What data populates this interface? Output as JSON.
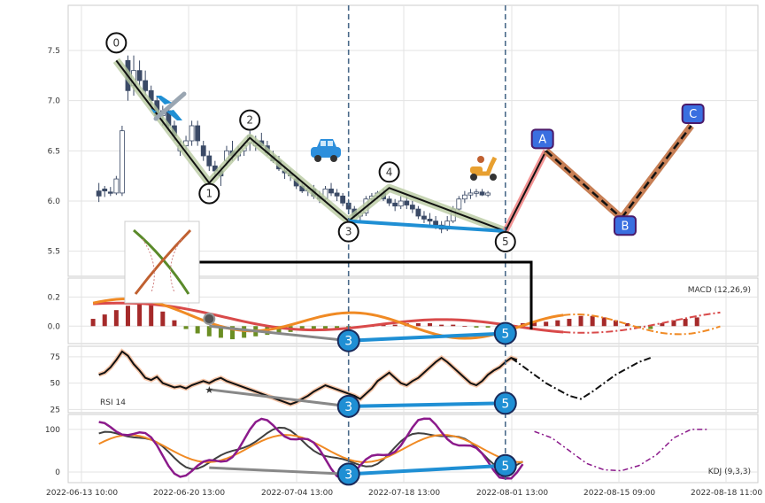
{
  "chart_data": {
    "type": "line",
    "x_labels": [
      "2022-06-13 10:00",
      "2022-06-20 13:00",
      "2022-07-04 13:00",
      "2022-07-18 13:00",
      "2022-08-01 13:00",
      "2022-08-15 09:00",
      "2022-08-18 11:00"
    ],
    "price": {
      "y_ticks": [
        "5.5",
        "6.0",
        "6.5",
        "7.0",
        "7.5"
      ],
      "ylim": [
        5.25,
        7.95
      ],
      "candles": [
        [
          6.1,
          6.18,
          5.99,
          6.05
        ],
        [
          6.12,
          6.15,
          6.04,
          6.1
        ],
        [
          6.09,
          6.14,
          6.05,
          6.08
        ],
        [
          6.08,
          6.25,
          6.06,
          6.22
        ],
        [
          6.08,
          6.75,
          6.05,
          6.7
        ],
        [
          7.4,
          7.45,
          7.0,
          7.1
        ],
        [
          7.15,
          7.45,
          7.05,
          7.3
        ],
        [
          7.3,
          7.4,
          7.15,
          7.2
        ],
        [
          7.2,
          7.3,
          7.05,
          7.1
        ],
        [
          7.1,
          7.15,
          6.95,
          7.0
        ],
        [
          7.0,
          7.05,
          6.8,
          6.85
        ],
        [
          6.85,
          6.95,
          6.75,
          6.9
        ],
        [
          6.9,
          6.95,
          6.7,
          6.75
        ],
        [
          6.75,
          6.8,
          6.6,
          6.65
        ],
        [
          6.5,
          6.6,
          6.45,
          6.55
        ],
        [
          6.55,
          6.65,
          6.5,
          6.6
        ],
        [
          6.6,
          6.8,
          6.55,
          6.75
        ],
        [
          6.75,
          6.8,
          6.55,
          6.6
        ],
        [
          6.55,
          6.6,
          6.4,
          6.45
        ],
        [
          6.45,
          6.5,
          6.3,
          6.35
        ],
        [
          6.35,
          6.4,
          6.25,
          6.3
        ],
        [
          6.3,
          6.35,
          6.15,
          6.25
        ],
        [
          6.4,
          6.55,
          6.35,
          6.5
        ],
        [
          6.5,
          6.6,
          6.4,
          6.45
        ],
        [
          6.45,
          6.55,
          6.4,
          6.5
        ],
        [
          6.5,
          6.58,
          6.45,
          6.55
        ],
        [
          6.58,
          6.7,
          6.5,
          6.65
        ],
        [
          6.55,
          6.65,
          6.5,
          6.6
        ],
        [
          6.6,
          6.68,
          6.52,
          6.55
        ],
        [
          6.55,
          6.6,
          6.45,
          6.48
        ],
        [
          6.45,
          6.5,
          6.38,
          6.4
        ],
        [
          6.4,
          6.45,
          6.3,
          6.32
        ],
        [
          6.3,
          6.35,
          6.22,
          6.28
        ],
        [
          6.28,
          6.32,
          6.2,
          6.25
        ],
        [
          6.22,
          6.25,
          6.12,
          6.15
        ],
        [
          6.15,
          6.2,
          6.08,
          6.1
        ],
        [
          6.1,
          6.15,
          6.05,
          6.12
        ],
        [
          6.12,
          6.16,
          6.02,
          6.05
        ],
        [
          6.05,
          6.1,
          5.98,
          6.02
        ],
        [
          6.02,
          6.15,
          6.0,
          6.12
        ],
        [
          6.12,
          6.18,
          6.05,
          6.08
        ],
        [
          6.08,
          6.12,
          6.0,
          6.05
        ],
        [
          6.05,
          6.08,
          5.95,
          5.98
        ],
        [
          5.98,
          6.02,
          5.88,
          5.92
        ],
        [
          5.92,
          5.95,
          5.83,
          5.85
        ],
        [
          5.85,
          5.9,
          5.8,
          5.88
        ],
        [
          5.88,
          6.05,
          5.85,
          6.02
        ],
        [
          6.02,
          6.08,
          5.98,
          6.05
        ],
        [
          6.05,
          6.1,
          6.02,
          6.08
        ],
        [
          6.08,
          6.12,
          6.0,
          6.02
        ],
        [
          6.02,
          6.05,
          5.95,
          5.98
        ],
        [
          5.98,
          6.02,
          5.9,
          5.95
        ],
        [
          5.95,
          6.05,
          5.92,
          6.0
        ],
        [
          6.0,
          6.05,
          5.92,
          5.96
        ],
        [
          5.96,
          6.0,
          5.88,
          5.92
        ],
        [
          5.92,
          5.95,
          5.82,
          5.85
        ],
        [
          5.85,
          5.9,
          5.78,
          5.82
        ],
        [
          5.82,
          5.88,
          5.75,
          5.8
        ],
        [
          5.8,
          5.85,
          5.72,
          5.76
        ],
        [
          5.76,
          5.8,
          5.68,
          5.72
        ],
        [
          5.72,
          5.85,
          5.7,
          5.8
        ],
        [
          5.8,
          5.95,
          5.78,
          5.92
        ],
        [
          5.92,
          6.05,
          5.9,
          6.02
        ],
        [
          6.02,
          6.1,
          5.98,
          6.06
        ],
        [
          6.06,
          6.12,
          6.02,
          6.08
        ],
        [
          6.08,
          6.12,
          6.04,
          6.09
        ],
        [
          6.09,
          6.12,
          6.05,
          6.06
        ],
        [
          6.06,
          6.1,
          6.04,
          6.08
        ]
      ],
      "wave_labels": [
        "0",
        "1",
        "2",
        "3",
        "4",
        "5"
      ],
      "wave_points": [
        [
          6,
          7.4
        ],
        [
          22,
          6.18
        ],
        [
          29,
          6.63
        ],
        [
          46,
          5.8
        ],
        [
          53,
          6.13
        ],
        [
          73,
          5.7
        ]
      ],
      "projection_labels": [
        "A",
        "B",
        "C"
      ],
      "projection_points": [
        [
          73,
          5.7
        ],
        [
          80,
          6.5
        ],
        [
          93,
          5.83
        ],
        [
          105,
          6.75
        ]
      ]
    },
    "macd": {
      "label": "MACD (12,26,9)",
      "y_ticks": [
        "0.0",
        "0.2"
      ],
      "ylim": [
        -0.12,
        0.33
      ],
      "histogram": [
        0.05,
        0.08,
        0.11,
        0.14,
        0.16,
        0.15,
        0.1,
        0.04,
        -0.02,
        -0.05,
        -0.07,
        -0.08,
        -0.09,
        -0.08,
        -0.07,
        -0.06,
        -0.05,
        -0.04,
        -0.03,
        -0.03,
        -0.02,
        -0.02,
        -0.01,
        -0.01,
        0.0,
        0.01,
        0.01,
        0.02,
        0.02,
        0.02,
        0.01,
        0.01,
        0.0,
        -0.01,
        -0.01,
        -0.02,
        0.01,
        0.02,
        0.03,
        0.03,
        0.04,
        0.05,
        0.07,
        0.07,
        0.06,
        0.04,
        0.02,
        -0.01,
        -0.02,
        0.02,
        0.04,
        0.05,
        0.06
      ]
    },
    "rsi": {
      "label": "RSI 14",
      "y_ticks": [
        "25",
        "50",
        "75"
      ],
      "ylim": [
        22,
        85
      ],
      "values": [
        58,
        60,
        65,
        72,
        80,
        76,
        68,
        62,
        55,
        53,
        56,
        50,
        48,
        46,
        47,
        45,
        48,
        50,
        52,
        50,
        53,
        55,
        52,
        50,
        48,
        46,
        44,
        42,
        40,
        38,
        36,
        34,
        32,
        30,
        32,
        35,
        38,
        42,
        45,
        48,
        46,
        44,
        42,
        40,
        38,
        35,
        40,
        45,
        52,
        56,
        60,
        55,
        50,
        48,
        52,
        55,
        60,
        65,
        70,
        74,
        70,
        65,
        60,
        55,
        50,
        48,
        52,
        58,
        62,
        65,
        70,
        74,
        72
      ]
    },
    "kdj": {
      "label": "KDJ (9,3,3)",
      "y_ticks": [
        "0",
        "100"
      ],
      "ylim": [
        -25,
        135
      ]
    },
    "divergence_labels": [
      "3",
      "5"
    ],
    "colors": {
      "bull": "#ffffff",
      "bear": "#3b4a66",
      "wave": "#b8c9a0",
      "divergence": "#1f8fd4",
      "projection_ab": "#f08080",
      "projection_bc": "#c77f55",
      "label_fill": "#3a6fe0",
      "k": "#404040",
      "d": "#f08a24",
      "j": "#8b1a8b",
      "macd_line": "#f08a24",
      "signal_line": "#d94a4a",
      "hist_pos": "#a52a2a",
      "hist_neg": "#6b8e23"
    },
    "icons": [
      "airplane-icon",
      "car-icon",
      "scooter-icon",
      "butterfly-icon"
    ]
  }
}
